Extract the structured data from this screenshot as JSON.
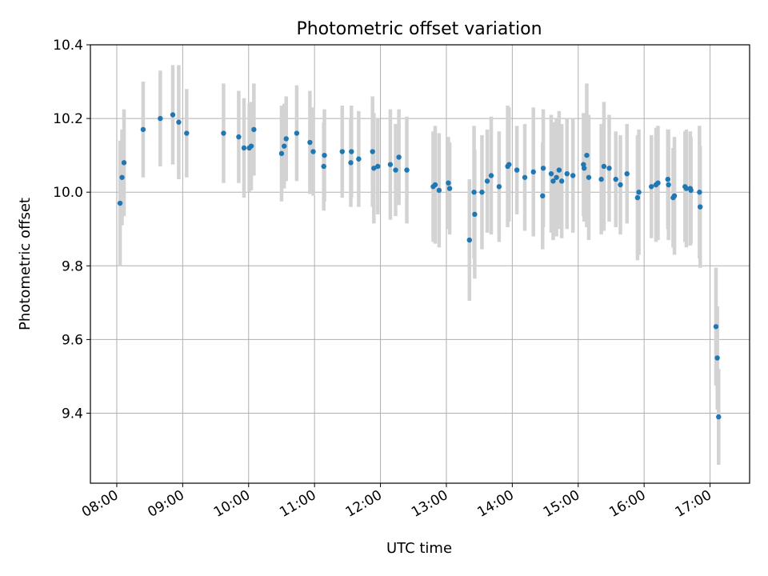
{
  "chart_data": {
    "type": "scatter",
    "title": "Photometric offset variation",
    "xlabel": "UTC time",
    "ylabel": "Photometric offset",
    "x_unit": "UTC hours",
    "xlim": [
      7.6,
      17.6
    ],
    "ylim": [
      9.21,
      10.4
    ],
    "grid": true,
    "legend": "none",
    "colors": {
      "point": "#1f77b4",
      "errorbar": "#d3d3d3"
    },
    "x_ticks": [
      {
        "label": "08:00",
        "value": 8
      },
      {
        "label": "09:00",
        "value": 9
      },
      {
        "label": "10:00",
        "value": 10
      },
      {
        "label": "11:00",
        "value": 11
      },
      {
        "label": "12:00",
        "value": 12
      },
      {
        "label": "13:00",
        "value": 13
      },
      {
        "label": "14:00",
        "value": 14
      },
      {
        "label": "15:00",
        "value": 15
      },
      {
        "label": "16:00",
        "value": 16
      },
      {
        "label": "17:00",
        "value": 17
      }
    ],
    "y_ticks": [
      {
        "label": "9.4",
        "value": 9.4
      },
      {
        "label": "9.6",
        "value": 9.6
      },
      {
        "label": "9.8",
        "value": 9.8
      },
      {
        "label": "10.0",
        "value": 10.0
      },
      {
        "label": "10.2",
        "value": 10.2
      },
      {
        "label": "10.4",
        "value": 10.4
      }
    ],
    "points": [
      [
        8.05,
        9.97,
        0.17
      ],
      [
        8.08,
        10.04,
        0.13
      ],
      [
        8.11,
        10.08,
        0.145
      ],
      [
        8.4,
        10.17,
        0.13
      ],
      [
        8.66,
        10.2,
        0.13
      ],
      [
        8.85,
        10.21,
        0.135
      ],
      [
        8.94,
        10.19,
        0.155
      ],
      [
        9.06,
        10.16,
        0.12
      ],
      [
        9.62,
        10.16,
        0.135
      ],
      [
        9.85,
        10.15,
        0.125
      ],
      [
        9.93,
        10.12,
        0.135
      ],
      [
        10.01,
        10.12,
        0.12
      ],
      [
        10.04,
        10.125,
        0.12
      ],
      [
        10.08,
        10.17,
        0.125
      ],
      [
        10.5,
        10.105,
        0.13
      ],
      [
        10.54,
        10.125,
        0.115
      ],
      [
        10.57,
        10.145,
        0.115
      ],
      [
        10.73,
        10.16,
        0.13
      ],
      [
        10.93,
        10.135,
        0.14
      ],
      [
        10.98,
        10.11,
        0.12
      ],
      [
        11.14,
        10.07,
        0.12
      ],
      [
        11.15,
        10.1,
        0.125
      ],
      [
        11.42,
        10.11,
        0.125
      ],
      [
        11.55,
        10.08,
        0.12
      ],
      [
        11.56,
        10.11,
        0.125
      ],
      [
        11.67,
        10.09,
        0.13
      ],
      [
        11.88,
        10.11,
        0.15
      ],
      [
        11.9,
        10.065,
        0.15
      ],
      [
        11.96,
        10.07,
        0.13
      ],
      [
        12.15,
        10.075,
        0.15
      ],
      [
        12.23,
        10.06,
        0.125
      ],
      [
        12.28,
        10.095,
        0.13
      ],
      [
        12.4,
        10.06,
        0.145
      ],
      [
        12.8,
        10.015,
        0.15
      ],
      [
        12.83,
        10.02,
        0.16
      ],
      [
        12.89,
        10.005,
        0.155
      ],
      [
        13.03,
        10.025,
        0.125
      ],
      [
        13.05,
        10.01,
        0.125
      ],
      [
        13.35,
        9.87,
        0.165
      ],
      [
        13.42,
        10.0,
        0.18
      ],
      [
        13.43,
        9.94,
        0.175
      ],
      [
        13.54,
        10.0,
        0.155
      ],
      [
        13.62,
        10.03,
        0.14
      ],
      [
        13.68,
        10.045,
        0.16
      ],
      [
        13.8,
        10.015,
        0.15
      ],
      [
        13.93,
        10.07,
        0.165
      ],
      [
        13.95,
        10.075,
        0.155
      ],
      [
        14.07,
        10.06,
        0.12
      ],
      [
        14.19,
        10.04,
        0.145
      ],
      [
        14.32,
        10.055,
        0.175
      ],
      [
        14.46,
        9.99,
        0.145
      ],
      [
        14.47,
        10.065,
        0.16
      ],
      [
        14.59,
        10.05,
        0.16
      ],
      [
        14.62,
        10.03,
        0.16
      ],
      [
        14.67,
        10.04,
        0.16
      ],
      [
        14.71,
        10.06,
        0.16
      ],
      [
        14.75,
        10.03,
        0.155
      ],
      [
        14.83,
        10.05,
        0.15
      ],
      [
        14.92,
        10.045,
        0.155
      ],
      [
        15.08,
        10.075,
        0.14
      ],
      [
        15.09,
        10.065,
        0.145
      ],
      [
        15.13,
        10.1,
        0.195
      ],
      [
        15.16,
        10.04,
        0.17
      ],
      [
        15.35,
        10.035,
        0.15
      ],
      [
        15.39,
        10.07,
        0.175
      ],
      [
        15.47,
        10.065,
        0.145
      ],
      [
        15.57,
        10.035,
        0.13
      ],
      [
        15.64,
        10.02,
        0.135
      ],
      [
        15.74,
        10.05,
        0.135
      ],
      [
        15.9,
        9.985,
        0.17
      ],
      [
        15.92,
        10.0,
        0.17
      ],
      [
        16.11,
        10.015,
        0.14
      ],
      [
        16.18,
        10.02,
        0.155
      ],
      [
        16.21,
        10.025,
        0.155
      ],
      [
        16.36,
        10.035,
        0.135
      ],
      [
        16.37,
        10.02,
        0.15
      ],
      [
        16.44,
        9.985,
        0.135
      ],
      [
        16.46,
        9.99,
        0.16
      ],
      [
        16.62,
        10.015,
        0.15
      ],
      [
        16.64,
        10.01,
        0.16
      ],
      [
        16.7,
        10.01,
        0.155
      ],
      [
        16.71,
        10.005,
        0.145
      ],
      [
        16.84,
        10.0,
        0.18
      ],
      [
        16.85,
        9.96,
        0.165
      ],
      [
        17.09,
        9.635,
        0.16
      ],
      [
        17.11,
        9.55,
        0.14
      ],
      [
        17.13,
        9.39,
        0.13
      ]
    ]
  }
}
